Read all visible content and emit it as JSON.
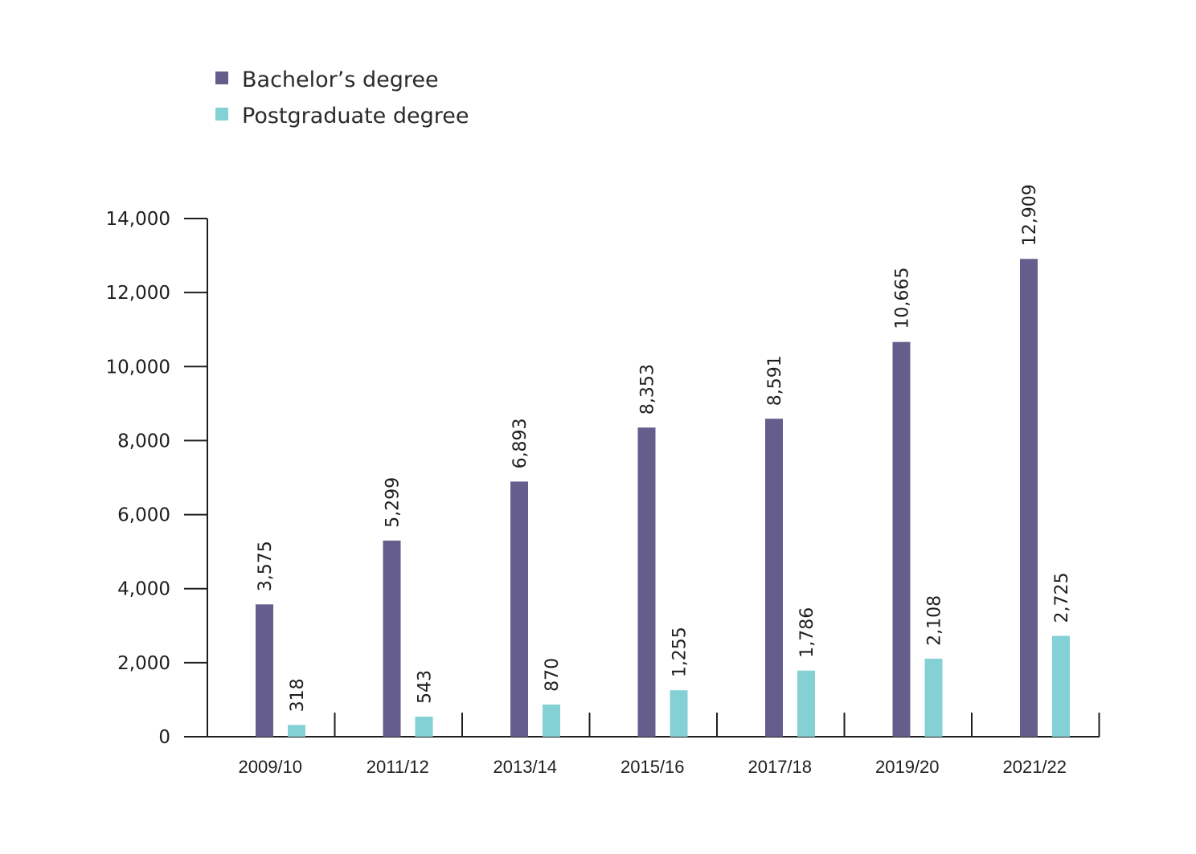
{
  "chart_data": {
    "type": "bar",
    "title": "",
    "xlabel": "",
    "ylabel": "",
    "categories": [
      "2009/10",
      "2011/12",
      "2013/14",
      "2015/16",
      "2017/18",
      "2019/20",
      "2021/22"
    ],
    "series": [
      {
        "name": "Bachelor’s degree",
        "color": "#655d8c",
        "values": [
          3575,
          5299,
          6893,
          8353,
          8591,
          10665,
          12909
        ],
        "labels": [
          "3,575",
          "5,299",
          "6,893",
          "8,353",
          "8,591",
          "10,665",
          "12,909"
        ]
      },
      {
        "name": "Postgraduate degree",
        "color": "#83d0d5",
        "values": [
          318,
          543,
          870,
          1255,
          1786,
          2108,
          2725
        ],
        "labels": [
          "318",
          "543",
          "870",
          "1,255",
          "1,786",
          "2,108",
          "2,725"
        ]
      }
    ],
    "ylim": [
      0,
      14000
    ],
    "yticks": [
      0,
      2000,
      4000,
      6000,
      8000,
      10000,
      12000,
      14000
    ],
    "ytick_labels": [
      "0",
      "2,000",
      "4,000",
      "6,000",
      "8,000",
      "10,000",
      "12,000",
      "14,000"
    ],
    "legend_position": "top-left",
    "grid": false
  }
}
